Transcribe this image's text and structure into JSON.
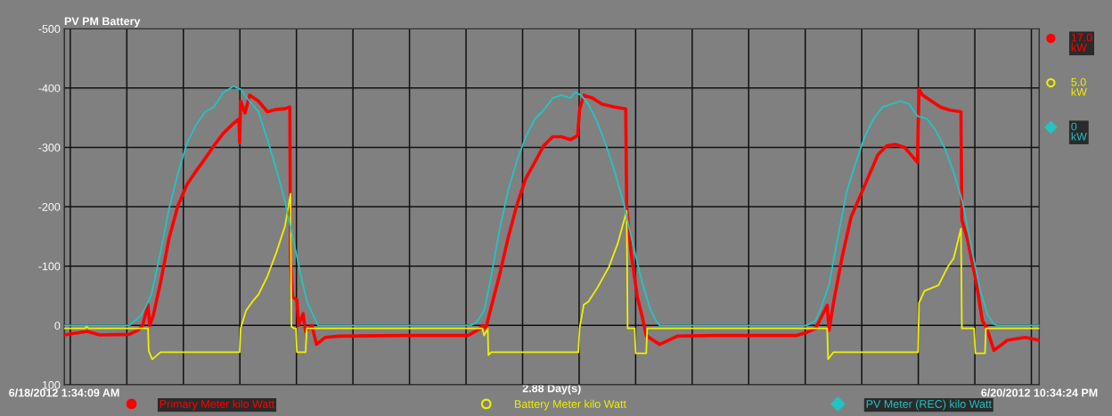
{
  "chart_data": {
    "type": "line",
    "title": "PV PM Battery",
    "xlabel": "2.88 Day(s)",
    "xlim": [
      "2012-06-18T01:34",
      "2012-06-20T22:34"
    ],
    "ylim": [
      100,
      -500
    ],
    "yticks": [
      -500,
      -400,
      -300,
      -200,
      -100,
      0,
      100
    ],
    "xticks": [
      {
        "value": "2012-06-18T01:34",
        "label": "6/18/2012 1:34:09 AM"
      },
      {
        "value": "2012-06-18T02:00",
        "label": null
      },
      {
        "value": "2012-06-18T06:00",
        "label": null
      },
      {
        "value": "2012-06-18T10:00",
        "label": null
      },
      {
        "value": "2012-06-18T14:00",
        "label": null
      },
      {
        "value": "2012-06-18T18:00",
        "label": null
      },
      {
        "value": "2012-06-18T22:00",
        "label": null
      },
      {
        "value": "2012-06-19T02:00",
        "label": null
      },
      {
        "value": "2012-06-19T06:00",
        "label": null
      },
      {
        "value": "2012-06-19T10:00",
        "label": null
      },
      {
        "value": "2012-06-19T14:00",
        "label": null
      },
      {
        "value": "2012-06-19T18:00",
        "label": null
      },
      {
        "value": "2012-06-19T22:00",
        "label": null
      },
      {
        "value": "2012-06-20T02:00",
        "label": null
      },
      {
        "value": "2012-06-20T06:00",
        "label": null
      },
      {
        "value": "2012-06-20T10:00",
        "label": null
      },
      {
        "value": "2012-06-20T14:00",
        "label": null
      },
      {
        "value": "2012-06-20T18:00",
        "label": null
      },
      {
        "value": "2012-06-20T22:00",
        "label": null
      },
      {
        "value": "2012-06-20T22:34",
        "label": "6/20/2012 10:34:24 PM"
      }
    ],
    "grid": true,
    "legend": "bottom",
    "line_style": "solid",
    "annotations": [
      "17.0\nkW",
      "5.0\nkW",
      "0\nkW"
    ],
    "series": [
      {
        "name": "Primary Meter kilo Watt",
        "color": "#ff0000",
        "x": [
          "2012-06-18T01:34",
          "2012-06-18T03:12",
          "2012-06-18T04:04",
          "2012-06-18T06:10",
          "2012-06-18T06:48",
          "2012-06-18T07:07",
          "2012-06-18T07:30",
          "2012-06-18T07:37",
          "2012-06-18T07:53",
          "2012-06-18T08:23",
          "2012-06-18T09:00",
          "2012-06-18T09:38",
          "2012-06-18T10:16",
          "2012-06-18T10:54",
          "2012-06-18T11:32",
          "2012-06-18T12:10",
          "2012-06-18T12:48",
          "2012-06-18T13:26",
          "2012-06-18T13:56",
          "2012-06-18T13:59",
          "2012-06-18T14:03",
          "2012-06-18T14:22",
          "2012-06-18T14:41",
          "2012-06-18T15:19",
          "2012-06-18T15:57",
          "2012-06-18T16:35",
          "2012-06-18T17:12",
          "2012-06-18T17:32",
          "2012-06-18T17:35",
          "2012-06-18T17:43",
          "2012-06-18T18:02",
          "2012-06-18T18:09",
          "2012-06-18T18:28",
          "2012-06-18T18:39",
          "2012-06-18T19:06",
          "2012-06-18T19:25",
          "2012-06-18T20:03",
          "2012-06-18T21:00",
          "2012-06-19T01:24",
          "2012-06-19T06:08",
          "2012-06-19T06:54",
          "2012-06-19T07:12",
          "2012-06-19T07:24",
          "2012-06-19T07:43",
          "2012-06-19T08:21",
          "2012-06-19T08:59",
          "2012-06-19T09:36",
          "2012-06-19T10:14",
          "2012-06-19T10:52",
          "2012-06-19T11:30",
          "2012-06-19T12:08",
          "2012-06-19T12:45",
          "2012-06-19T13:23",
          "2012-06-19T13:54",
          "2012-06-19T14:02",
          "2012-06-19T14:20",
          "2012-06-19T14:58",
          "2012-06-19T15:36",
          "2012-06-19T16:32",
          "2012-06-19T17:18",
          "2012-06-19T17:22",
          "2012-06-19T17:41",
          "2012-06-19T18:07",
          "2012-06-19T18:26",
          "2012-06-19T18:45",
          "2012-06-19T19:15",
          "2012-06-19T19:42",
          "2012-06-19T20:57",
          "2012-06-19T23:29",
          "2012-06-20T02:38",
          "2012-06-20T05:21",
          "2012-06-20T06:06",
          "2012-06-20T06:44",
          "2012-06-20T07:33",
          "2012-06-20T07:41",
          "2012-06-20T08:00",
          "2012-06-20T08:38",
          "2012-06-20T09:15",
          "2012-06-20T09:53",
          "2012-06-20T10:31",
          "2012-06-20T11:09",
          "2012-06-20T11:47",
          "2012-06-20T12:24",
          "2012-06-20T13:02",
          "2012-06-20T13:56",
          "2012-06-20T14:03",
          "2012-06-20T14:18",
          "2012-06-20T14:56",
          "2012-06-20T15:34",
          "2012-06-20T16:12",
          "2012-06-20T17:01",
          "2012-06-20T17:05",
          "2012-06-20T17:27",
          "2012-06-20T18:05",
          "2012-06-20T18:32",
          "2012-06-20T18:51",
          "2012-06-20T19:21",
          "2012-06-20T20:18",
          "2012-06-20T21:33",
          "2012-06-20T22:34"
        ],
        "values": [
          16,
          10,
          16,
          15,
          8,
          0,
          -35,
          0,
          -18,
          -72,
          -148,
          -203,
          -238,
          -260,
          -281,
          -303,
          -323,
          -338,
          -348,
          -308,
          -378,
          -358,
          -388,
          -378,
          -360,
          -364,
          -365,
          -368,
          -113,
          -48,
          -43,
          0,
          -20,
          10,
          0,
          32,
          20,
          18,
          17,
          17,
          7,
          0,
          5,
          -25,
          -83,
          -148,
          -203,
          -248,
          -275,
          -303,
          -318,
          -318,
          -313,
          -320,
          -363,
          -388,
          -383,
          -373,
          -368,
          -365,
          -198,
          -123,
          -48,
          -18,
          17,
          25,
          32,
          18,
          17,
          17,
          17,
          12,
          5,
          -34,
          8,
          -38,
          -118,
          -183,
          -218,
          -253,
          -288,
          -303,
          -305,
          -300,
          -275,
          -398,
          -388,
          -378,
          -368,
          -363,
          -360,
          -178,
          -148,
          -75,
          -8,
          5,
          42,
          25,
          20,
          25
        ]
      },
      {
        "name": "Battery Meter kilo Watt",
        "color": "#f0f000",
        "x": [
          "2012-06-18T01:34",
          "2012-06-18T03:04",
          "2012-06-18T03:09",
          "2012-06-18T03:16",
          "2012-06-18T07:30",
          "2012-06-18T07:33",
          "2012-06-18T07:48",
          "2012-06-18T08:23",
          "2012-06-18T13:59",
          "2012-06-18T14:03",
          "2012-06-18T14:26",
          "2012-06-18T14:53",
          "2012-06-18T15:19",
          "2012-06-18T15:57",
          "2012-06-18T16:35",
          "2012-06-18T17:12",
          "2012-06-18T17:35",
          "2012-06-18T17:39",
          "2012-06-18T17:50",
          "2012-06-18T17:58",
          "2012-06-18T18:02",
          "2012-06-18T18:39",
          "2012-06-18T18:44",
          "2012-06-19T07:09",
          "2012-06-19T07:17",
          "2012-06-19T07:32",
          "2012-06-19T07:35",
          "2012-06-19T07:47",
          "2012-06-19T13:57",
          "2012-06-19T14:02",
          "2012-06-19T14:20",
          "2012-06-19T14:39",
          "2012-06-19T15:17",
          "2012-06-19T16:06",
          "2012-06-19T16:44",
          "2012-06-19T17:22",
          "2012-06-19T17:26",
          "2012-06-19T17:56",
          "2012-06-19T18:00",
          "2012-06-19T18:45",
          "2012-06-19T18:49",
          "2012-06-20T07:33",
          "2012-06-20T07:37",
          "2012-06-20T08:00",
          "2012-06-20T13:59",
          "2012-06-20T14:03",
          "2012-06-20T14:26",
          "2012-06-20T14:56",
          "2012-06-20T15:26",
          "2012-06-20T16:04",
          "2012-06-20T16:30",
          "2012-06-20T17:01",
          "2012-06-20T17:05",
          "2012-06-20T17:57",
          "2012-06-20T18:02",
          "2012-06-20T18:43",
          "2012-06-20T18:47",
          "2012-06-20T22:34"
        ],
        "values": [
          5,
          5,
          0,
          5,
          5,
          43,
          57,
          45,
          45,
          5,
          -25,
          -40,
          -52,
          -83,
          -123,
          -168,
          -222,
          2,
          5,
          5,
          45,
          45,
          5,
          5,
          17,
          5,
          50,
          45,
          45,
          5,
          -35,
          -40,
          -63,
          -98,
          -138,
          -193,
          5,
          5,
          47,
          47,
          5,
          5,
          57,
          45,
          45,
          -38,
          -58,
          -63,
          -68,
          -98,
          -113,
          -163,
          5,
          5,
          47,
          47,
          5,
          5
        ]
      },
      {
        "name": "PV Meter (REC) kilo Watt",
        "color": "#22c4c4",
        "x": [
          "2012-06-18T01:34",
          "2012-06-18T06:10",
          "2012-06-18T06:29",
          "2012-06-18T06:56",
          "2012-06-18T07:18",
          "2012-06-18T07:45",
          "2012-06-18T08:23",
          "2012-06-18T09:00",
          "2012-06-18T09:38",
          "2012-06-18T10:16",
          "2012-06-18T10:54",
          "2012-06-18T11:32",
          "2012-06-18T12:10",
          "2012-06-18T12:48",
          "2012-06-18T13:33",
          "2012-06-18T14:03",
          "2012-06-18T14:41",
          "2012-06-18T15:19",
          "2012-06-18T15:57",
          "2012-06-18T16:35",
          "2012-06-18T17:12",
          "2012-06-18T17:50",
          "2012-06-18T18:28",
          "2012-06-18T18:47",
          "2012-06-18T19:25",
          "2012-06-18T19:32",
          "2012-06-19T06:20",
          "2012-06-19T06:46",
          "2012-06-19T07:17",
          "2012-06-19T07:43",
          "2012-06-19T08:21",
          "2012-06-19T08:59",
          "2012-06-19T09:36",
          "2012-06-19T10:14",
          "2012-06-19T10:52",
          "2012-06-19T11:30",
          "2012-06-19T12:08",
          "2012-06-19T12:45",
          "2012-06-19T13:23",
          "2012-06-19T13:42",
          "2012-06-19T14:09",
          "2012-06-19T14:39",
          "2012-06-19T15:17",
          "2012-06-19T15:55",
          "2012-06-19T16:32",
          "2012-06-19T17:11",
          "2012-06-19T17:48",
          "2012-06-19T18:26",
          "2012-06-19T19:04",
          "2012-06-19T19:30",
          "2012-06-19T19:42",
          "2012-06-20T06:06",
          "2012-06-20T06:44",
          "2012-06-20T07:03",
          "2012-06-20T07:41",
          "2012-06-20T08:18",
          "2012-06-20T08:56",
          "2012-06-20T09:35",
          "2012-06-20T10:12",
          "2012-06-20T10:50",
          "2012-06-20T11:28",
          "2012-06-20T12:06",
          "2012-06-20T12:44",
          "2012-06-20T13:21",
          "2012-06-20T13:56",
          "2012-06-20T14:37",
          "2012-06-20T15:15",
          "2012-06-20T15:53",
          "2012-06-20T16:30",
          "2012-06-20T17:08",
          "2012-06-20T17:47",
          "2012-06-20T18:24",
          "2012-06-20T18:54",
          "2012-06-20T19:21",
          "2012-06-20T19:34",
          "2012-06-20T22:34"
        ],
        "values": [
          0,
          0,
          -6,
          -15,
          -30,
          -53,
          -123,
          -198,
          -258,
          -308,
          -338,
          -360,
          -368,
          -392,
          -403,
          -398,
          -378,
          -360,
          -313,
          -263,
          -208,
          -138,
          -68,
          -38,
          -6,
          0,
          0,
          -6,
          -25,
          -75,
          -158,
          -228,
          -278,
          -318,
          -348,
          -363,
          -383,
          -388,
          -383,
          -393,
          -388,
          -373,
          -343,
          -303,
          -258,
          -203,
          -138,
          -75,
          -25,
          -6,
          0,
          0,
          -8,
          -25,
          -68,
          -148,
          -225,
          -275,
          -318,
          -348,
          -368,
          -373,
          -378,
          -373,
          -353,
          -348,
          -328,
          -298,
          -258,
          -208,
          -128,
          -58,
          -18,
          -2,
          0,
          0
        ]
      }
    ]
  }
}
